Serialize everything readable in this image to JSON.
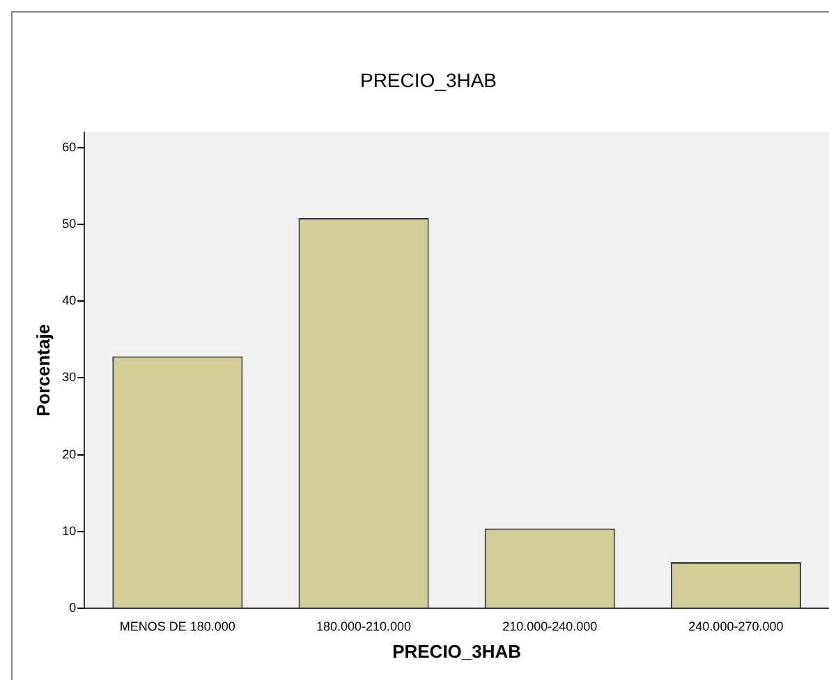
{
  "chart_data": {
    "type": "bar",
    "title": "PRECIO_3HAB",
    "xlabel": "PRECIO_3HAB",
    "ylabel": "Porcentaje",
    "categories": [
      "MENOS DE 180.000",
      "180.000-210.000",
      "210.000-240.000",
      "240.000-270.000"
    ],
    "values": [
      32.8,
      50.8,
      10.4,
      6.0
    ],
    "color": "#d3ce97",
    "ylim": [
      0,
      62
    ],
    "yticks": [
      0,
      10,
      20,
      30,
      40,
      50,
      60
    ],
    "grid": false,
    "legend": false
  }
}
